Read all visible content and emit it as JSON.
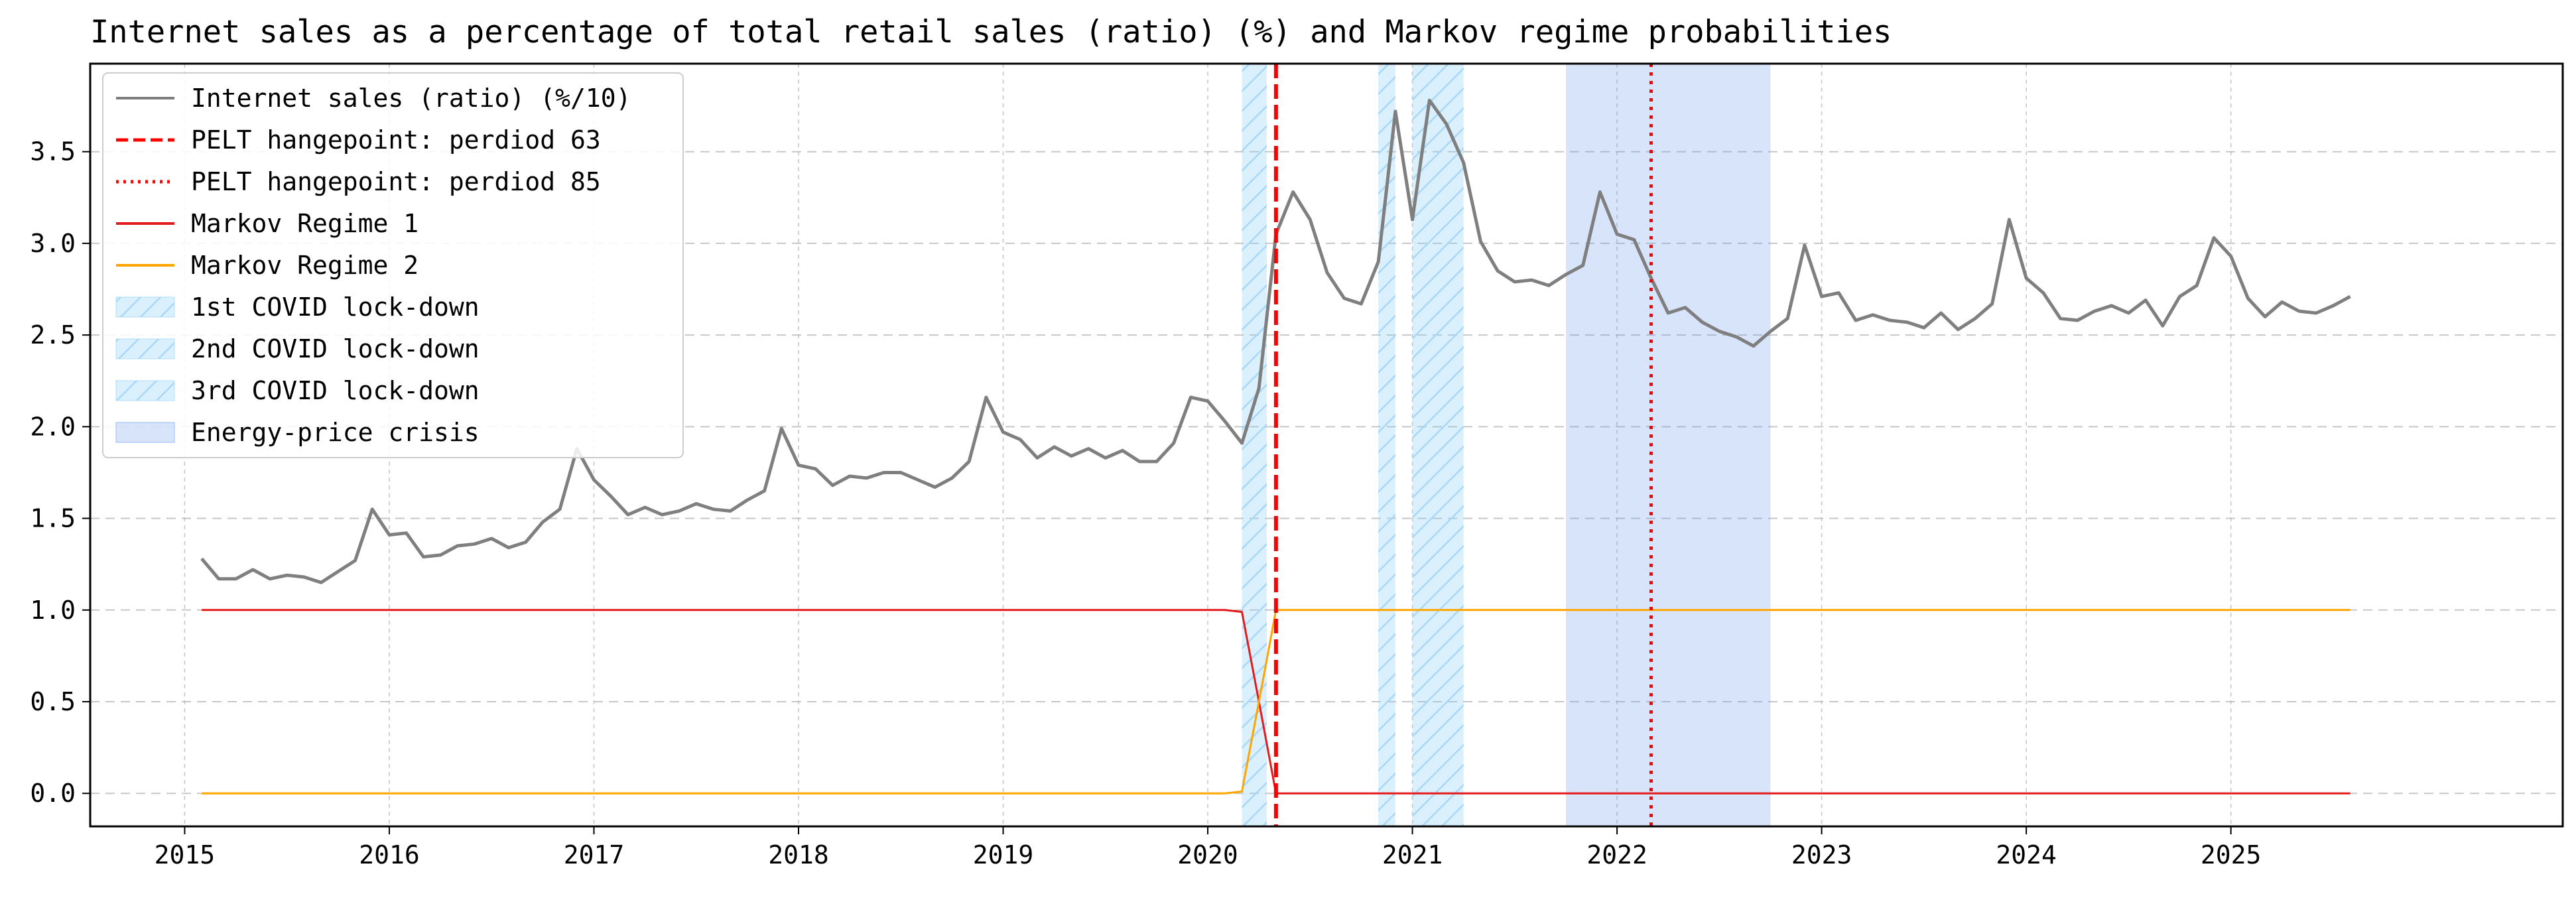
{
  "chart_data": {
    "type": "line",
    "title": "Internet sales as a percentage of total retail sales (ratio) (%) and Markov regime probabilities",
    "xlabel": "",
    "ylabel": "",
    "xlim": [
      "2014-07-15",
      "2026-08-15"
    ],
    "ylim": [
      -0.18,
      3.98
    ],
    "x_ticks": [
      "2015",
      "2016",
      "2017",
      "2018",
      "2019",
      "2020",
      "2021",
      "2022",
      "2023",
      "2024",
      "2025"
    ],
    "y_ticks": [
      "0.0",
      "0.5",
      "1.0",
      "1.5",
      "2.0",
      "2.5",
      "3.0",
      "3.5"
    ],
    "grid": true,
    "legend_position": "top-left",
    "series": [
      {
        "name": "Internet sales (ratio) (%/10)",
        "color": "#7f7f7f",
        "style": "solid",
        "x": [
          "2015-02-01",
          "2015-03-01",
          "2015-04-01",
          "2015-05-01",
          "2015-06-01",
          "2015-07-01",
          "2015-08-01",
          "2015-09-01",
          "2015-10-01",
          "2015-11-01",
          "2015-12-01",
          "2016-01-01",
          "2016-02-01",
          "2016-03-01",
          "2016-04-01",
          "2016-05-01",
          "2016-06-01",
          "2016-07-01",
          "2016-08-01",
          "2016-09-01",
          "2016-10-01",
          "2016-11-01",
          "2016-12-01",
          "2017-01-01",
          "2017-02-01",
          "2017-03-01",
          "2017-04-01",
          "2017-05-01",
          "2017-06-01",
          "2017-07-01",
          "2017-08-01",
          "2017-09-01",
          "2017-10-01",
          "2017-11-01",
          "2017-12-01",
          "2018-01-01",
          "2018-02-01",
          "2018-03-01",
          "2018-04-01",
          "2018-05-01",
          "2018-06-01",
          "2018-07-01",
          "2018-08-01",
          "2018-09-01",
          "2018-10-01",
          "2018-11-01",
          "2018-12-01",
          "2019-01-01",
          "2019-02-01",
          "2019-03-01",
          "2019-04-01",
          "2019-05-01",
          "2019-06-01",
          "2019-07-01",
          "2019-08-01",
          "2019-09-01",
          "2019-10-01",
          "2019-11-01",
          "2019-12-01",
          "2020-01-01",
          "2020-02-01",
          "2020-03-01",
          "2020-04-01",
          "2020-05-01",
          "2020-06-01",
          "2020-07-01",
          "2020-08-01",
          "2020-09-01",
          "2020-10-01",
          "2020-11-01",
          "2020-12-01",
          "2021-01-01",
          "2021-02-01",
          "2021-03-01",
          "2021-04-01",
          "2021-05-01",
          "2021-06-01",
          "2021-07-01",
          "2021-08-01",
          "2021-09-01",
          "2021-10-01",
          "2021-11-01",
          "2021-12-01",
          "2022-01-01",
          "2022-02-01",
          "2022-03-01",
          "2022-04-01",
          "2022-05-01",
          "2022-06-01",
          "2022-07-01",
          "2022-08-01",
          "2022-09-01",
          "2022-10-01",
          "2022-11-01",
          "2022-12-01",
          "2023-01-01",
          "2023-02-01",
          "2023-03-01",
          "2023-04-01",
          "2023-05-01",
          "2023-06-01",
          "2023-07-01",
          "2023-08-01",
          "2023-09-01",
          "2023-10-01",
          "2023-11-01",
          "2023-12-01",
          "2024-01-01",
          "2024-02-01",
          "2024-03-01",
          "2024-04-01",
          "2024-05-01",
          "2024-06-01",
          "2024-07-01",
          "2024-08-01",
          "2024-09-01",
          "2024-10-01",
          "2024-11-01",
          "2024-12-01",
          "2025-01-01",
          "2025-02-01",
          "2025-03-01",
          "2025-04-01",
          "2025-05-01",
          "2025-06-01",
          "2025-07-01",
          "2025-08-01"
        ],
        "values": [
          1.28,
          1.17,
          1.17,
          1.22,
          1.17,
          1.19,
          1.18,
          1.15,
          1.21,
          1.27,
          1.55,
          1.41,
          1.42,
          1.29,
          1.3,
          1.35,
          1.36,
          1.39,
          1.34,
          1.37,
          1.48,
          1.55,
          1.88,
          1.71,
          1.62,
          1.52,
          1.56,
          1.52,
          1.54,
          1.58,
          1.55,
          1.54,
          1.6,
          1.65,
          1.99,
          1.79,
          1.77,
          1.68,
          1.73,
          1.72,
          1.75,
          1.75,
          1.71,
          1.67,
          1.72,
          1.81,
          2.16,
          1.97,
          1.93,
          1.83,
          1.89,
          1.84,
          1.88,
          1.83,
          1.87,
          1.81,
          1.81,
          1.91,
          2.16,
          2.14,
          2.03,
          1.91,
          2.21,
          3.05,
          3.28,
          3.13,
          2.84,
          2.7,
          2.67,
          2.9,
          3.72,
          3.13,
          3.78,
          3.65,
          3.44,
          3.01,
          2.85,
          2.79,
          2.8,
          2.77,
          2.83,
          2.88,
          3.28,
          3.05,
          3.02,
          2.81,
          2.62,
          2.65,
          2.57,
          2.52,
          2.49,
          2.44,
          2.52,
          2.59,
          2.99,
          2.71,
          2.73,
          2.58,
          2.61,
          2.58,
          2.57,
          2.54,
          2.62,
          2.53,
          2.59,
          2.67,
          3.13,
          2.81,
          2.73,
          2.59,
          2.58,
          2.63,
          2.66,
          2.62,
          2.69,
          2.55,
          2.71,
          2.77,
          3.03,
          2.93,
          2.7,
          2.6,
          2.68,
          2.63,
          2.62,
          2.66,
          2.71
        ]
      },
      {
        "name": "Markov Regime 1",
        "color": "#e41a1c",
        "style": "solid",
        "x": [
          "2015-02-01",
          "2020-01-01",
          "2020-02-01",
          "2020-03-01",
          "2020-04-01",
          "2020-05-01",
          "2025-08-01"
        ],
        "values": [
          1.0,
          1.0,
          1.0,
          0.99,
          0.5,
          0.0,
          0.0
        ]
      },
      {
        "name": "Markov Regime 2",
        "color": "#ffa500",
        "style": "solid",
        "x": [
          "2015-02-01",
          "2020-01-01",
          "2020-02-01",
          "2020-03-01",
          "2020-04-01",
          "2020-05-01",
          "2025-08-01"
        ],
        "values": [
          0.0,
          0.0,
          0.0,
          0.01,
          0.5,
          1.0,
          1.0
        ]
      }
    ],
    "vlines": [
      {
        "name": "PELT hangepoint: perdiod 63",
        "x": "2020-05-01",
        "color": "#ff0000",
        "style": "dashed"
      },
      {
        "name": "PELT hangepoint: perdiod 85",
        "x": "2022-03-01",
        "color": "#ff0000",
        "style": "dotted"
      }
    ],
    "spans": [
      {
        "name": "1st COVID lock-down",
        "start": "2020-03-01",
        "end": "2020-04-15",
        "color": "#87cefa",
        "hatch": true
      },
      {
        "name": "2nd COVID lock-down",
        "start": "2020-11-01",
        "end": "2020-12-01",
        "color": "#87cefa",
        "hatch": true
      },
      {
        "name": "3rd COVID lock-down",
        "start": "2021-01-01",
        "end": "2021-04-01",
        "color": "#87cefa",
        "hatch": true
      },
      {
        "name": "Energy-price crisis",
        "start": "2021-10-01",
        "end": "2022-10-01",
        "color": "#6495ed",
        "hatch": false
      }
    ],
    "legend": [
      {
        "label": "Internet sales (ratio) (%/10)",
        "kind": "line",
        "color": "#7f7f7f",
        "style": "solid"
      },
      {
        "label": "PELT hangepoint: perdiod 63",
        "kind": "line",
        "color": "#ff0000",
        "style": "dashed"
      },
      {
        "label": "PELT hangepoint: perdiod 85",
        "kind": "line",
        "color": "#ff0000",
        "style": "dotted"
      },
      {
        "label": "Markov Regime 1",
        "kind": "line",
        "color": "#e41a1c",
        "style": "solid"
      },
      {
        "label": "Markov Regime 2",
        "kind": "line",
        "color": "#ffa500",
        "style": "solid"
      },
      {
        "label": "1st COVID lock-down",
        "kind": "patch",
        "color": "#87cefa",
        "hatch": true
      },
      {
        "label": "2nd COVID lock-down",
        "kind": "patch",
        "color": "#87cefa",
        "hatch": true
      },
      {
        "label": "3rd COVID lock-down",
        "kind": "patch",
        "color": "#87cefa",
        "hatch": true
      },
      {
        "label": "Energy-price crisis",
        "kind": "patch",
        "color": "#6495ed",
        "hatch": false
      }
    ]
  }
}
